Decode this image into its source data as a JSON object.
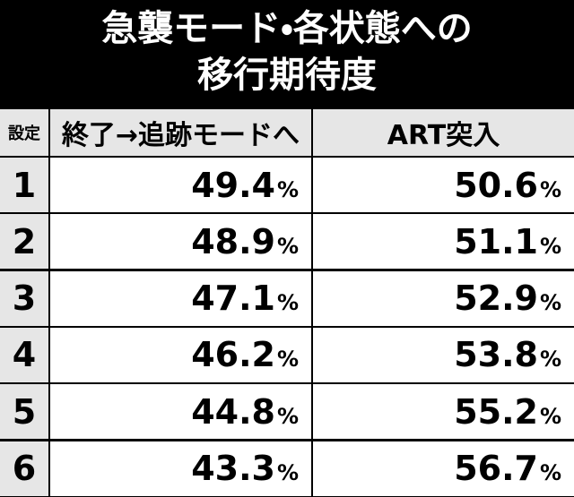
{
  "header": {
    "title_lines": [
      "急襲モード・各状態への",
      "移行期待度"
    ]
  },
  "table": {
    "columns": [
      "設定",
      "終了→追跡モードへ",
      "ART突入"
    ],
    "rows": [
      [
        "1",
        {
          "value": "49.4",
          "unit": "%"
        },
        {
          "value": "50.6",
          "unit": "%"
        }
      ],
      [
        "2",
        {
          "value": "48.9",
          "unit": "%"
        },
        {
          "value": "51.1",
          "unit": "%"
        }
      ],
      [
        "3",
        {
          "value": "47.1",
          "unit": "%"
        },
        {
          "value": "52.9",
          "unit": "%"
        }
      ],
      [
        "4",
        {
          "value": "46.2",
          "unit": "%"
        },
        {
          "value": "53.8",
          "unit": "%"
        }
      ],
      [
        "5",
        {
          "value": "44.8",
          "unit": "%"
        },
        {
          "value": "55.2",
          "unit": "%"
        }
      ],
      [
        "6",
        {
          "value": "43.3",
          "unit": "%"
        },
        {
          "value": "56.7",
          "unit": "%"
        }
      ]
    ]
  }
}
